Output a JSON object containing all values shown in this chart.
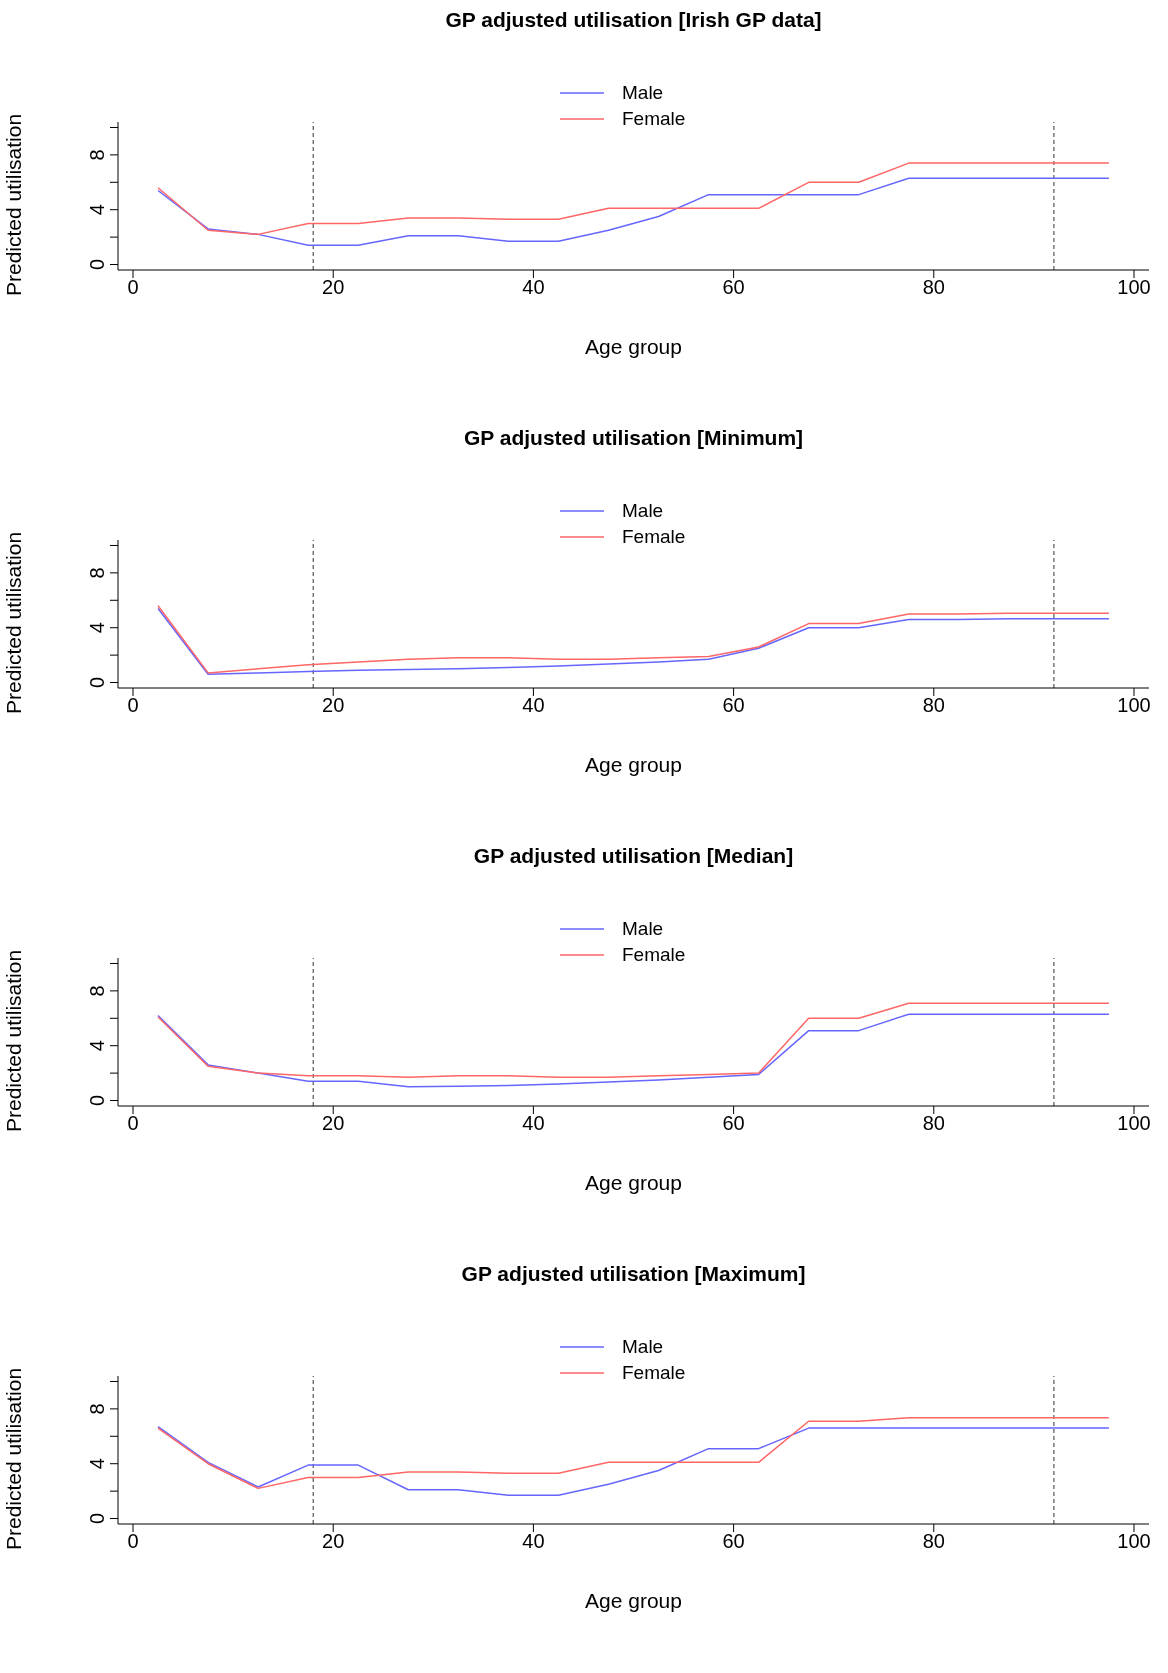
{
  "chart_data": [
    {
      "type": "line",
      "title": "GP adjusted utilisation [Irish GP data]",
      "xlabel": "Age group",
      "ylabel": "Predicted utilisation",
      "x": [
        2.5,
        7.5,
        12.5,
        17.5,
        22.5,
        27.5,
        32.5,
        37.5,
        42.5,
        47.5,
        52.5,
        57.5,
        62.5,
        67.5,
        72.5,
        77.5,
        82.5,
        87.5,
        92.5,
        97.5
      ],
      "xlim": [
        -1.5,
        101.5
      ],
      "xticks": [
        0,
        20,
        40,
        60,
        80,
        100
      ],
      "ylim": [
        -0.4,
        10.4
      ],
      "yticks": [
        0,
        {
          "value": 2,
          "label": null
        },
        4,
        {
          "value": 6,
          "label": null
        },
        8,
        {
          "value": 10,
          "label": null
        }
      ],
      "grid": false,
      "legend": "top",
      "marker": "none",
      "line_style": "solid",
      "ref_lines": [
        {
          "axis": "x",
          "value": 18,
          "color": "#333333",
          "line_style": "dashed"
        },
        {
          "axis": "x",
          "value": 92,
          "color": "#333333",
          "line_style": "dashed"
        }
      ],
      "series": [
        {
          "name": "Male",
          "color": "#6666ff",
          "values": [
            5.4,
            2.6,
            2.2,
            1.4,
            1.4,
            2.1,
            2.1,
            1.7,
            1.7,
            2.5,
            3.5,
            5.1,
            5.1,
            5.1,
            5.1,
            6.3,
            6.3,
            6.3,
            6.3,
            6.3
          ]
        },
        {
          "name": "Female",
          "color": "#ff6666",
          "values": [
            5.6,
            2.5,
            2.2,
            3.0,
            3.0,
            3.4,
            3.4,
            3.3,
            3.3,
            4.1,
            4.1,
            4.1,
            4.1,
            6.0,
            6.0,
            7.4,
            7.4,
            7.4,
            7.4,
            7.4
          ]
        }
      ]
    },
    {
      "type": "line",
      "title": "GP adjusted utilisation [Minimum]",
      "xlabel": "Age group",
      "ylabel": "Predicted utilisation",
      "x": [
        2.5,
        7.5,
        12.5,
        17.5,
        22.5,
        27.5,
        32.5,
        37.5,
        42.5,
        47.5,
        52.5,
        57.5,
        62.5,
        67.5,
        72.5,
        77.5,
        82.5,
        87.5,
        92.5,
        97.5
      ],
      "xlim": [
        -1.5,
        101.5
      ],
      "xticks": [
        0,
        20,
        40,
        60,
        80,
        100
      ],
      "ylim": [
        -0.4,
        10.4
      ],
      "yticks": [
        0,
        {
          "value": 2,
          "label": null
        },
        4,
        {
          "value": 6,
          "label": null
        },
        8,
        {
          "value": 10,
          "label": null
        }
      ],
      "grid": false,
      "legend": "top",
      "marker": "none",
      "line_style": "solid",
      "ref_lines": [
        {
          "axis": "x",
          "value": 18,
          "color": "#333333",
          "line_style": "dashed"
        },
        {
          "axis": "x",
          "value": 92,
          "color": "#333333",
          "line_style": "dashed"
        }
      ],
      "series": [
        {
          "name": "Male",
          "color": "#6666ff",
          "values": [
            5.4,
            0.6,
            0.7,
            0.8,
            0.9,
            0.95,
            1.0,
            1.1,
            1.2,
            1.35,
            1.5,
            1.7,
            2.5,
            4.0,
            4.0,
            4.6,
            4.6,
            4.65,
            4.65,
            4.65
          ]
        },
        {
          "name": "Female",
          "color": "#ff6666",
          "values": [
            5.6,
            0.7,
            1.0,
            1.3,
            1.5,
            1.7,
            1.8,
            1.8,
            1.7,
            1.7,
            1.8,
            1.9,
            2.6,
            4.3,
            4.3,
            5.0,
            5.0,
            5.05,
            5.05,
            5.05
          ]
        }
      ]
    },
    {
      "type": "line",
      "title": "GP adjusted utilisation [Median]",
      "xlabel": "Age group",
      "ylabel": "Predicted utilisation",
      "x": [
        2.5,
        7.5,
        12.5,
        17.5,
        22.5,
        27.5,
        32.5,
        37.5,
        42.5,
        47.5,
        52.5,
        57.5,
        62.5,
        67.5,
        72.5,
        77.5,
        82.5,
        87.5,
        92.5,
        97.5
      ],
      "xlim": [
        -1.5,
        101.5
      ],
      "xticks": [
        0,
        20,
        40,
        60,
        80,
        100
      ],
      "ylim": [
        -0.4,
        10.4
      ],
      "yticks": [
        0,
        {
          "value": 2,
          "label": null
        },
        4,
        {
          "value": 6,
          "label": null
        },
        8,
        {
          "value": 10,
          "label": null
        }
      ],
      "grid": false,
      "legend": "top",
      "marker": "none",
      "line_style": "solid",
      "ref_lines": [
        {
          "axis": "x",
          "value": 18,
          "color": "#333333",
          "line_style": "dashed"
        },
        {
          "axis": "x",
          "value": 92,
          "color": "#333333",
          "line_style": "dashed"
        }
      ],
      "series": [
        {
          "name": "Male",
          "color": "#6666ff",
          "values": [
            6.2,
            2.6,
            2.0,
            1.4,
            1.4,
            1.0,
            1.05,
            1.1,
            1.2,
            1.35,
            1.5,
            1.7,
            1.9,
            5.1,
            5.1,
            6.3,
            6.3,
            6.3,
            6.3,
            6.3
          ]
        },
        {
          "name": "Female",
          "color": "#ff6666",
          "values": [
            6.1,
            2.5,
            2.0,
            1.8,
            1.8,
            1.7,
            1.8,
            1.8,
            1.7,
            1.7,
            1.8,
            1.9,
            2.0,
            6.0,
            6.0,
            7.1,
            7.1,
            7.1,
            7.1,
            7.1
          ]
        }
      ]
    },
    {
      "type": "line",
      "title": "GP adjusted utilisation [Maximum]",
      "xlabel": "Age group",
      "ylabel": "Predicted utilisation",
      "x": [
        2.5,
        7.5,
        12.5,
        17.5,
        22.5,
        27.5,
        32.5,
        37.5,
        42.5,
        47.5,
        52.5,
        57.5,
        62.5,
        67.5,
        72.5,
        77.5,
        82.5,
        87.5,
        92.5,
        97.5
      ],
      "xlim": [
        -1.5,
        101.5
      ],
      "xticks": [
        0,
        20,
        40,
        60,
        80,
        100
      ],
      "ylim": [
        -0.4,
        10.4
      ],
      "yticks": [
        0,
        {
          "value": 2,
          "label": null
        },
        4,
        {
          "value": 6,
          "label": null
        },
        8,
        {
          "value": 10,
          "label": null
        }
      ],
      "grid": false,
      "legend": "top",
      "marker": "none",
      "line_style": "solid",
      "ref_lines": [
        {
          "axis": "x",
          "value": 18,
          "color": "#333333",
          "line_style": "dashed"
        },
        {
          "axis": "x",
          "value": 92,
          "color": "#333333",
          "line_style": "dashed"
        }
      ],
      "series": [
        {
          "name": "Male",
          "color": "#6666ff",
          "values": [
            6.7,
            4.1,
            2.3,
            3.9,
            3.9,
            2.1,
            2.1,
            1.7,
            1.7,
            2.5,
            3.5,
            5.1,
            5.1,
            6.6,
            6.6,
            6.6,
            6.6,
            6.6,
            6.6,
            6.6
          ]
        },
        {
          "name": "Female",
          "color": "#ff6666",
          "values": [
            6.6,
            4.0,
            2.2,
            3.0,
            3.0,
            3.4,
            3.4,
            3.3,
            3.3,
            4.1,
            4.1,
            4.1,
            4.1,
            7.1,
            7.1,
            7.35,
            7.35,
            7.35,
            7.35,
            7.35
          ]
        }
      ]
    }
  ]
}
